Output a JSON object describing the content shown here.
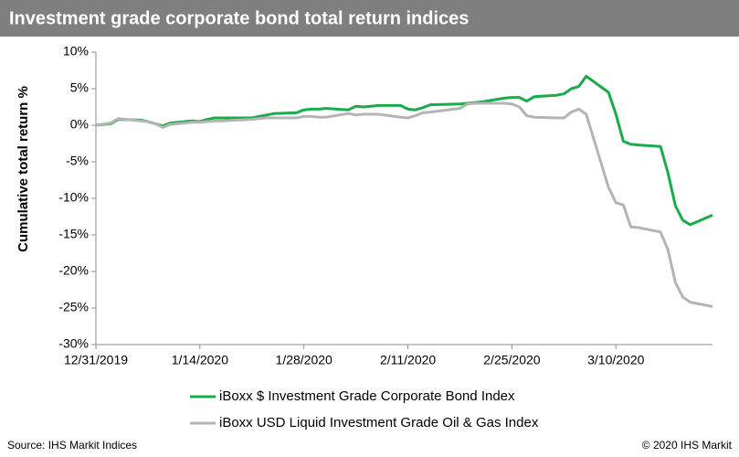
{
  "chart_data": {
    "type": "line",
    "title": "Investment grade corporate bond total return indices",
    "ylabel": "Cumulative total return %",
    "source": "Source: IHS Markit Indices",
    "copyright": "© 2020 IHS Markit",
    "legend": "bottom",
    "x": [
      "2019-12-31",
      "2020-01-02",
      "2020-01-03",
      "2020-01-06",
      "2020-01-07",
      "2020-01-08",
      "2020-01-09",
      "2020-01-10",
      "2020-01-13",
      "2020-01-14",
      "2020-01-15",
      "2020-01-16",
      "2020-01-17",
      "2020-01-21",
      "2020-01-22",
      "2020-01-23",
      "2020-01-24",
      "2020-01-27",
      "2020-01-28",
      "2020-01-29",
      "2020-01-30",
      "2020-01-31",
      "2020-02-03",
      "2020-02-04",
      "2020-02-05",
      "2020-02-06",
      "2020-02-07",
      "2020-02-10",
      "2020-02-11",
      "2020-02-12",
      "2020-02-13",
      "2020-02-14",
      "2020-02-18",
      "2020-02-19",
      "2020-02-20",
      "2020-02-21",
      "2020-02-24",
      "2020-02-25",
      "2020-02-26",
      "2020-02-27",
      "2020-02-28",
      "2020-03-02",
      "2020-03-03",
      "2020-03-04",
      "2020-03-05",
      "2020-03-06",
      "2020-03-09",
      "2020-03-10",
      "2020-03-11",
      "2020-03-12",
      "2020-03-13",
      "2020-03-16",
      "2020-03-17",
      "2020-03-18",
      "2020-03-19",
      "2020-03-20",
      "2020-03-23"
    ],
    "series": [
      {
        "name": "iBoxx $ Investment Grade Corporate Bond Index",
        "color": "#1aab4b",
        "values": [
          0,
          0.2,
          0.8,
          0.7,
          0.5,
          0.2,
          -0.1,
          0.3,
          0.6,
          0.5,
          0.8,
          1.0,
          1.0,
          1.0,
          1.2,
          1.4,
          1.6,
          1.7,
          2.1,
          2.2,
          2.2,
          2.3,
          2.1,
          2.6,
          2.5,
          2.6,
          2.7,
          2.7,
          2.2,
          2.1,
          2.4,
          2.8,
          2.9,
          3.0,
          3.1,
          3.2,
          3.7,
          3.8,
          3.8,
          3.3,
          3.9,
          4.1,
          4.3,
          5.0,
          5.3,
          6.7,
          4.5,
          1.5,
          -2.2,
          -2.6,
          -2.7,
          -2.9,
          -6.5,
          -11.0,
          -13.0,
          -13.6,
          -12.3
        ]
      },
      {
        "name": "iBoxx USD Liquid Investment Grade Oil & Gas Index",
        "color": "#b4b4b4",
        "values": [
          0,
          0.3,
          0.9,
          0.6,
          0.5,
          0.2,
          -0.3,
          0.1,
          0.4,
          0.4,
          0.5,
          0.6,
          0.6,
          0.8,
          0.9,
          1.0,
          1.0,
          1.0,
          1.2,
          1.2,
          1.1,
          1.1,
          1.6,
          1.4,
          1.5,
          1.5,
          1.5,
          1.1,
          1.0,
          1.3,
          1.7,
          1.8,
          2.3,
          2.9,
          3.0,
          3.0,
          3.0,
          2.9,
          2.5,
          1.3,
          1.1,
          1.0,
          1.0,
          1.8,
          2.2,
          1.5,
          -8.5,
          -10.6,
          -10.9,
          -13.9,
          -14.0,
          -14.6,
          -17.0,
          -21.5,
          -23.5,
          -24.2,
          -24.8
        ]
      }
    ],
    "xlim": [
      "2019-12-31",
      "2020-03-23"
    ],
    "xticks": [
      {
        "value": "2019-12-31",
        "label": "12/31/2019"
      },
      {
        "value": "2020-01-14",
        "label": "1/14/2020"
      },
      {
        "value": "2020-01-28",
        "label": "1/28/2020"
      },
      {
        "value": "2020-02-11",
        "label": "2/11/2020"
      },
      {
        "value": "2020-02-25",
        "label": "2/25/2020"
      },
      {
        "value": "2020-03-10",
        "label": "3/10/2020"
      }
    ],
    "ylim": [
      -30,
      10
    ],
    "yticks": [
      {
        "value": 10,
        "label": "10%"
      },
      {
        "value": 5,
        "label": "5%"
      },
      {
        "value": 0,
        "label": "0%"
      },
      {
        "value": -5,
        "label": "-5%"
      },
      {
        "value": -10,
        "label": "-10%"
      },
      {
        "value": -15,
        "label": "-15%"
      },
      {
        "value": -20,
        "label": "-20%"
      },
      {
        "value": -25,
        "label": "-25%"
      },
      {
        "value": -30,
        "label": "-30%"
      }
    ]
  }
}
